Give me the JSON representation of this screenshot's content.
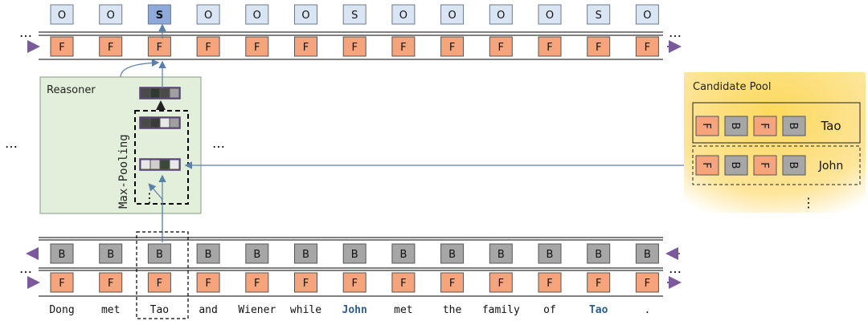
{
  "tokens": [
    "Dong",
    "met",
    "Tao",
    "and",
    "Wiener",
    "while",
    "John",
    "met",
    "the",
    "family",
    "of",
    "Tao",
    "."
  ],
  "highlighted_token_indices": [
    6,
    11
  ],
  "top_output_labels": [
    "O",
    "O",
    "S",
    "O",
    "O",
    "O",
    "S",
    "O",
    "O",
    "O",
    "O",
    "S",
    "O"
  ],
  "selected_output_index": 2,
  "cell_labels": {
    "forward": "F",
    "backward": "B"
  },
  "reasoner": {
    "title": "Reasoner",
    "pooling_label": "Max-Pooling"
  },
  "candidate_pool": {
    "title": "Candidate Pool",
    "candidates": [
      {
        "name": "Tao",
        "cells": [
          "F",
          "B",
          "F",
          "B"
        ]
      },
      {
        "name": "John",
        "cells": [
          "F",
          "B",
          "F",
          "B"
        ]
      }
    ]
  },
  "ellipsis": "…",
  "vertical_ellipsis": "⋮",
  "colors": {
    "forward_fill": "#f6a47c",
    "backward_fill": "#a6a6a6",
    "output_fill": "#dae5f3",
    "output_selected_fill": "#8eaadb",
    "reasoner_fill": "#e2efda",
    "candidate_pool_fill": "#fbd35a",
    "arrow_blue": "#5b7fab",
    "arrow_purple": "#7a5a9c",
    "highlight_text": "#2e5d8c"
  }
}
